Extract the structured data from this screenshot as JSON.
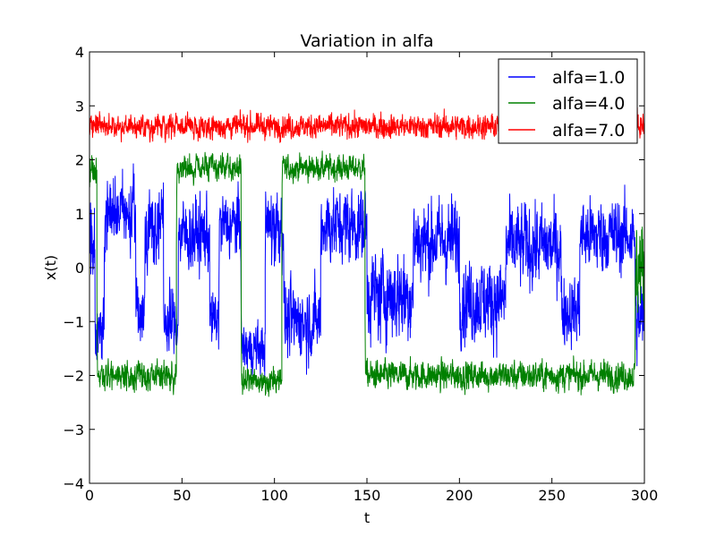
{
  "chart_data": {
    "type": "line",
    "title": "Variation in alfa",
    "xlabel": "t",
    "ylabel": "x(t)",
    "xlim": [
      0,
      300
    ],
    "ylim": [
      -4,
      4
    ],
    "xticks": [
      "0",
      "50",
      "100",
      "150",
      "200",
      "250",
      "300"
    ],
    "yticks": [
      "4",
      "3",
      "2",
      "1",
      "0",
      "−1",
      "−2",
      "−3",
      "−4"
    ],
    "legend_position": "top-right",
    "grid": false,
    "series": [
      {
        "name": "alfa=1.0",
        "color": "#0000ff",
        "regimes": [
          [
            0,
            3,
            0.5,
            1.2
          ],
          [
            3,
            8,
            -1.2,
            0.8
          ],
          [
            8,
            25,
            1.0,
            0.9
          ],
          [
            25,
            30,
            -0.8,
            0.8
          ],
          [
            30,
            40,
            0.8,
            0.9
          ],
          [
            40,
            48,
            -1.0,
            0.8
          ],
          [
            48,
            65,
            0.6,
            0.9
          ],
          [
            65,
            70,
            -1.0,
            0.7
          ],
          [
            70,
            82,
            0.8,
            0.8
          ],
          [
            82,
            95,
            -1.5,
            0.6
          ],
          [
            95,
            105,
            0.8,
            1.0
          ],
          [
            105,
            125,
            -1.0,
            0.9
          ],
          [
            125,
            150,
            0.8,
            0.9
          ],
          [
            150,
            175,
            -0.5,
            1.1
          ],
          [
            175,
            200,
            0.5,
            1.0
          ],
          [
            200,
            225,
            -0.6,
            1.0
          ],
          [
            225,
            255,
            0.4,
            1.0
          ],
          [
            255,
            265,
            -0.8,
            0.8
          ],
          [
            265,
            295,
            0.6,
            0.9
          ],
          [
            295,
            300,
            -1.0,
            1.0
          ]
        ]
      },
      {
        "name": "alfa=4.0",
        "color": "#008000",
        "regimes": [
          [
            0,
            4,
            1.8,
            0.4
          ],
          [
            4,
            47,
            -2.0,
            0.35
          ],
          [
            47,
            82,
            1.85,
            0.3
          ],
          [
            82,
            104,
            -2.1,
            0.35
          ],
          [
            104,
            149,
            1.85,
            0.3
          ],
          [
            149,
            295,
            -2.0,
            0.35
          ],
          [
            295,
            300,
            0.0,
            1.2
          ]
        ]
      },
      {
        "name": "alfa=7.0",
        "color": "#ff0000",
        "regimes": [
          [
            0,
            300,
            2.62,
            0.28
          ]
        ]
      }
    ]
  }
}
